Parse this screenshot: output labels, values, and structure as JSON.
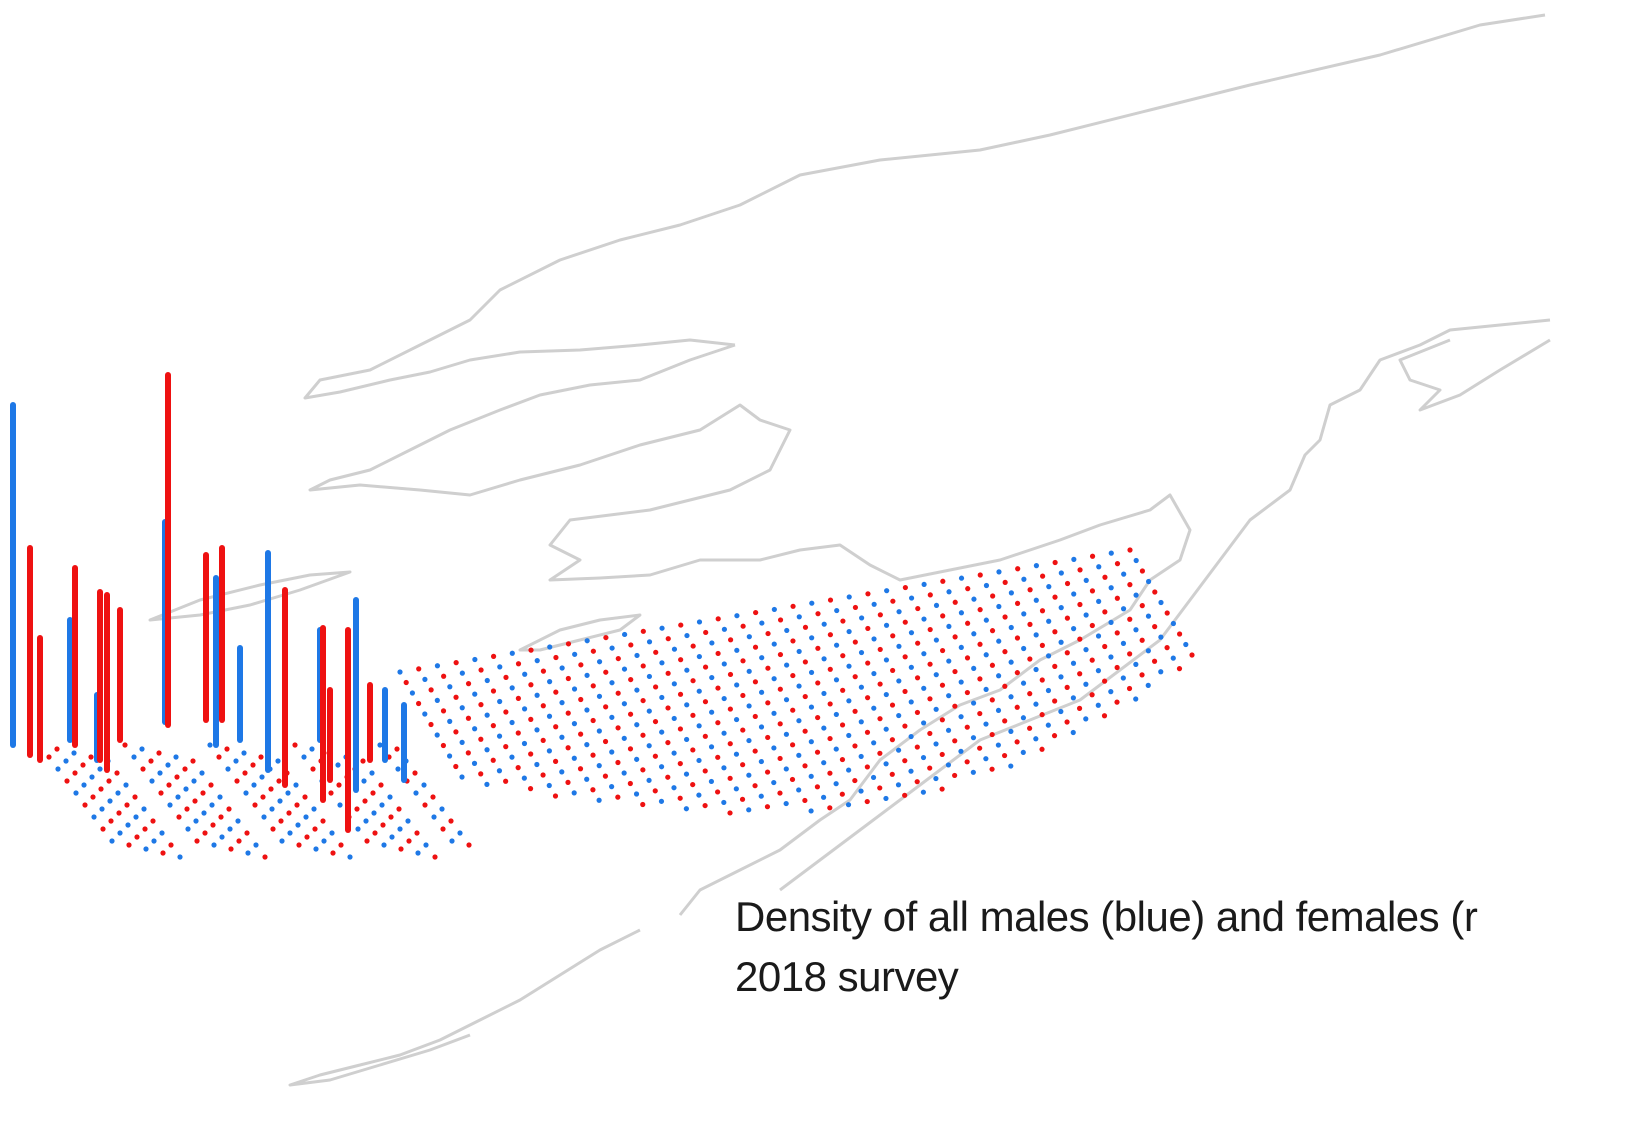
{
  "caption": {
    "line1": "Density of all males (blue) and females (r",
    "line2": "2018 survey"
  },
  "chart_data": {
    "type": "bar3d",
    "series": [
      {
        "color": "#1e78e6",
        "values": [
          340,
          200,
          167,
          217,
          190,
          120,
          110,
          65,
          92,
          70,
          75
        ]
      },
      {
        "color": "#ee1111",
        "values": [
          350,
          207,
          177,
          168,
          175,
          130,
          165,
          172,
          195,
          172,
          200,
          122,
          90,
          75
        ]
      }
    ]
  }
}
